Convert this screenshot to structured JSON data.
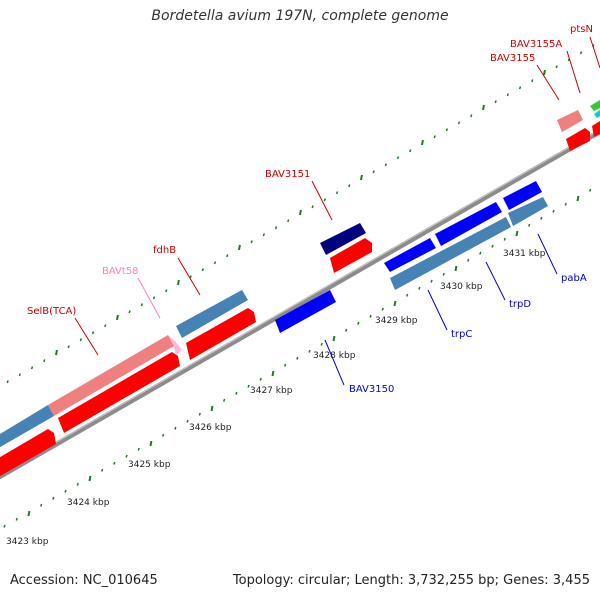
{
  "title": "Bordetella avium 197N, complete genome",
  "footer": {
    "accession": "Accession: NC_010645",
    "summary": "Topology: circular; Length: 3,732,255 bp; Genes: 3,455"
  },
  "colors": {
    "backbone": "#888888",
    "tick": "#1f7a1f",
    "forward_cds": "#ff0000",
    "reverse_cds": "#0000ff",
    "rna": "#f08080",
    "operon_fwd": "#4682b4",
    "operon_highlight": "#000080",
    "label_red": "#cc0000",
    "label_blue": "#0000cc",
    "label_pink": "#ff7fbf"
  },
  "scale": {
    "unit": "kbp",
    "ticks": [
      "3423 kbp",
      "3424 kbp",
      "3425 kbp",
      "3426 kbp",
      "3427 kbp",
      "3428 kbp",
      "3429 kbp",
      "3430 kbp",
      "3431 kbp"
    ]
  },
  "genes": [
    {
      "name": "SelB(TCA)",
      "color": "label_red"
    },
    {
      "name": "BAVt58",
      "color": "label_pink"
    },
    {
      "name": "fdhB",
      "color": "label_red"
    },
    {
      "name": "BAV3151",
      "color": "label_red"
    },
    {
      "name": "BAV3155",
      "color": "label_red"
    },
    {
      "name": "BAV3155A",
      "color": "label_red"
    },
    {
      "name": "ptsN",
      "color": "label_red"
    },
    {
      "name": "BAV3150",
      "color": "label_blue"
    },
    {
      "name": "trpC",
      "color": "label_blue"
    },
    {
      "name": "trpD",
      "color": "label_blue"
    },
    {
      "name": "pabA",
      "color": "label_blue"
    }
  ]
}
